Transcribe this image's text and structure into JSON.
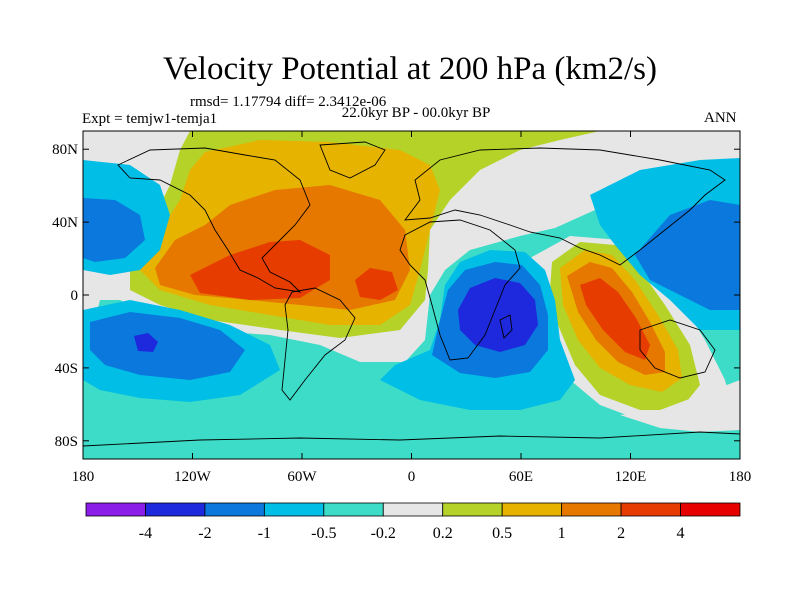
{
  "header": {
    "title": "Velocity Potential at 200 hPa (km2/s)",
    "stats": "rmsd= 1.17794 diff= 2.3412e-06",
    "subtitle": "22.0kyr BP - 00.0kyr BP",
    "expt_label": "Expt = temjw1-temja1",
    "season": "ANN"
  },
  "chart_data": {
    "type": "heatmap",
    "title": "Velocity Potential at 200 hPa (km2/s)",
    "xlabel": "",
    "ylabel": "",
    "x_ticks": [
      "180",
      "120W",
      "60W",
      "0",
      "60E",
      "120E",
      "180"
    ],
    "x_tick_values": [
      -180,
      -120,
      -60,
      0,
      60,
      120,
      180
    ],
    "y_ticks": [
      "80N",
      "40N",
      "0",
      "40S",
      "80S"
    ],
    "y_tick_values": [
      80,
      40,
      0,
      -40,
      -80
    ],
    "xlim": [
      -180,
      180
    ],
    "ylim": [
      -90,
      90
    ],
    "colorbar": {
      "levels": [
        -4,
        -2,
        -1,
        -0.5,
        -0.2,
        0.2,
        0.5,
        1,
        2,
        4
      ],
      "labels": [
        "-4",
        "-2",
        "-1",
        "-0.5",
        "-0.2",
        "0.2",
        "0.5",
        "1",
        "2",
        "4"
      ],
      "colors": [
        "#8a1ee8",
        "#1e28dc",
        "#0a78dc",
        "#00bee6",
        "#3cdcc8",
        "#e6e6e6",
        "#b4d228",
        "#e6b400",
        "#e67800",
        "#e63c00",
        "#e60000"
      ]
    }
  }
}
